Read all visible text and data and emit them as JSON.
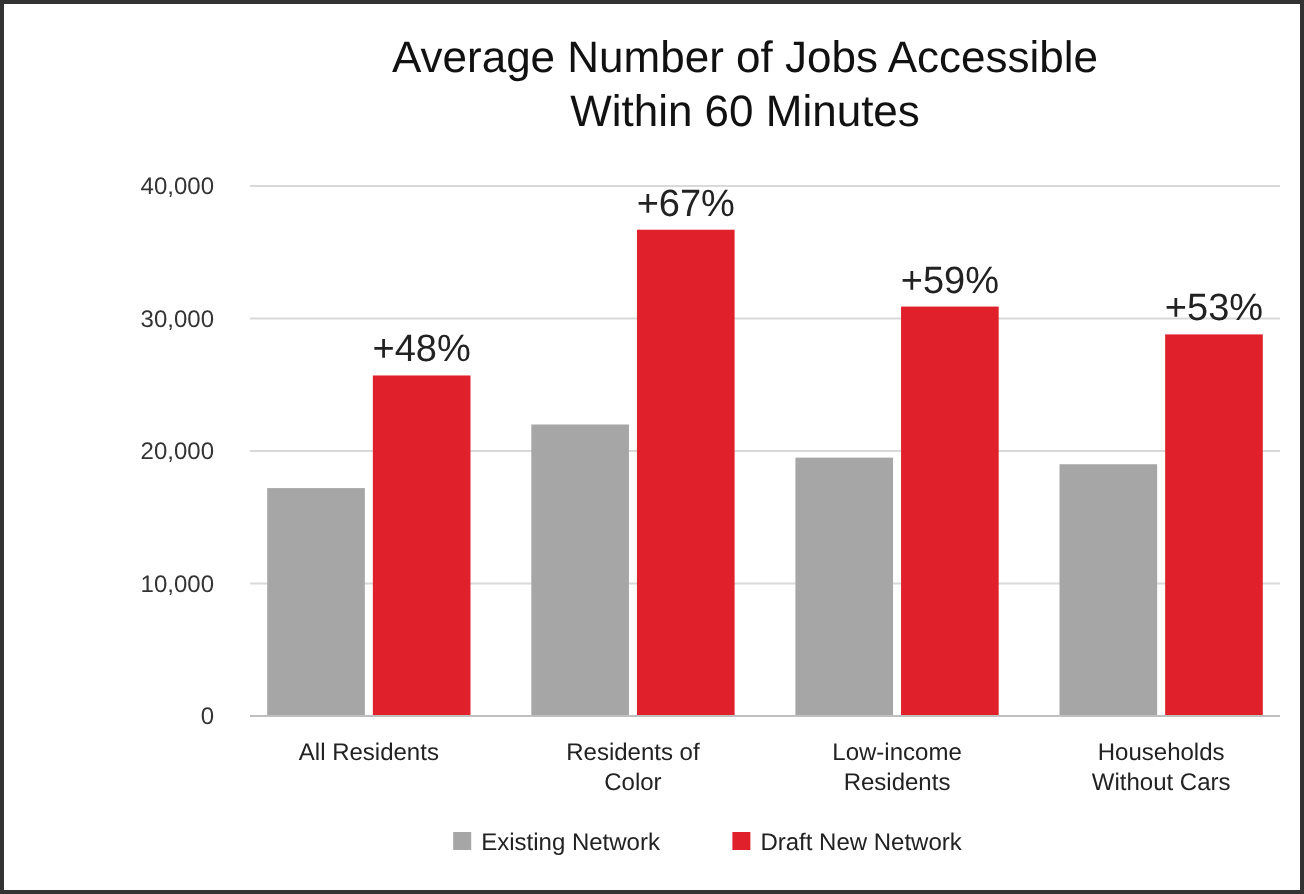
{
  "chart_data": {
    "type": "bar",
    "title": "Average Number of Jobs Accessible\nWithin 60 Minutes",
    "categories": [
      "All Residents",
      "Residents of\nColor",
      "Low-income\nResidents",
      "Households\nWithout Cars"
    ],
    "series": [
      {
        "name": "Existing Network",
        "color": "#a6a6a6",
        "values": [
          17200,
          22000,
          19500,
          19000
        ]
      },
      {
        "name": "Draft New Network",
        "color": "#e0202a",
        "values": [
          25700,
          36700,
          30900,
          28800
        ]
      }
    ],
    "ylim": [
      0,
      40000
    ],
    "yticks": [
      {
        "value": 0,
        "label": "0"
      },
      {
        "value": 10000,
        "label": "10,000"
      },
      {
        "value": 20000,
        "label": "20,000"
      },
      {
        "value": 30000,
        "label": "30,000"
      },
      {
        "value": 40000,
        "label": "40,000"
      }
    ],
    "grid": "y",
    "legend": "bottom",
    "annotations": [
      {
        "text": "+48%",
        "x": "All Residents",
        "y": 25700
      },
      {
        "text": "+67%",
        "x": "Residents of\nColor",
        "y": 36700
      },
      {
        "text": "+59%",
        "x": "Low-income\nResidents",
        "y": 30900
      },
      {
        "text": "+53%",
        "x": "Households\nWithout Cars",
        "y": 28800
      }
    ]
  }
}
